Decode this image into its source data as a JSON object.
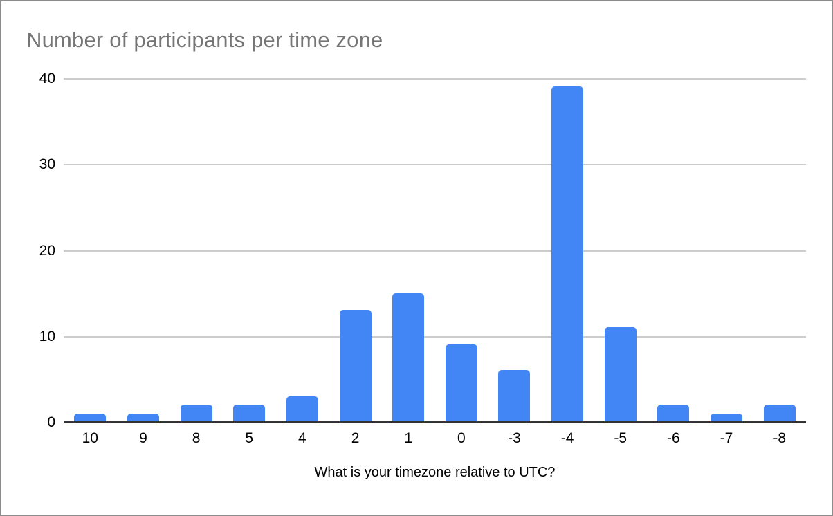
{
  "chart_data": {
    "type": "bar",
    "title": "Number of participants per time zone",
    "xlabel": "What is your timezone relative to UTC?",
    "ylabel": "",
    "categories": [
      "10",
      "9",
      "8",
      "5",
      "4",
      "2",
      "1",
      "0",
      "-3",
      "-4",
      "-5",
      "-6",
      "-7",
      "-8"
    ],
    "values": [
      1,
      1,
      2,
      2,
      3,
      13,
      15,
      9,
      6,
      39,
      11,
      2,
      1,
      2
    ],
    "y_ticks": [
      0,
      10,
      20,
      30,
      40
    ],
    "ylim": [
      0,
      40
    ],
    "grid": true,
    "legend": "none",
    "colors": {
      "bar": "#4285f4",
      "title": "#757575",
      "gridline": "#cccccc",
      "axis_line": "#333333",
      "tick_label": "#000000",
      "background": "#ffffff",
      "frame_border": "#8c8c8c"
    }
  }
}
